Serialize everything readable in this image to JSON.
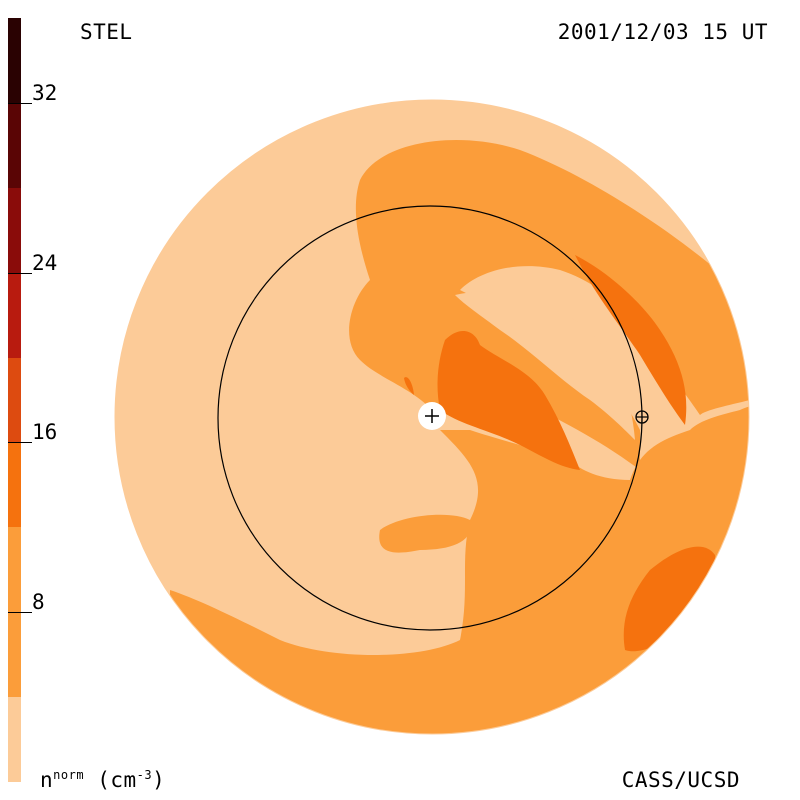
{
  "header": {
    "title_left": "STEL",
    "title_right": "2001/12/03 15 UT"
  },
  "footer": {
    "label_left_base": "n",
    "label_left_sup": "norm",
    "label_left_unit": "(cm",
    "label_left_unit_sup": "-3",
    "label_left_close": ")",
    "label_right": "CASS/UCSD"
  },
  "chart_data": {
    "type": "heatmap",
    "title": "STEL",
    "timestamp": "2001/12/03 15 UT",
    "quantity": "n norm",
    "unit": "cm-3",
    "colorbar": {
      "range": [
        0,
        36
      ],
      "ticks": [
        8,
        16,
        24,
        32
      ],
      "levels": [
        {
          "from": 0,
          "to": 4,
          "color": "#fccb98"
        },
        {
          "from": 4,
          "to": 12,
          "color": "#fb9d3a"
        },
        {
          "from": 12,
          "to": 16,
          "color": "#f5720e"
        },
        {
          "from": 16,
          "to": 20,
          "color": "#dd4b10"
        },
        {
          "from": 20,
          "to": 24,
          "color": "#b81b0f"
        },
        {
          "from": 24,
          "to": 28,
          "color": "#8a0c0a"
        },
        {
          "from": 28,
          "to": 32,
          "color": "#5a0505"
        },
        {
          "from": 32,
          "to": 36,
          "color": "#2a0202"
        }
      ]
    },
    "markers": [
      {
        "name": "sun",
        "symbol": "+"
      },
      {
        "name": "earth",
        "symbol": "⊕"
      }
    ],
    "grid": false,
    "legend": "colorbar-left"
  }
}
